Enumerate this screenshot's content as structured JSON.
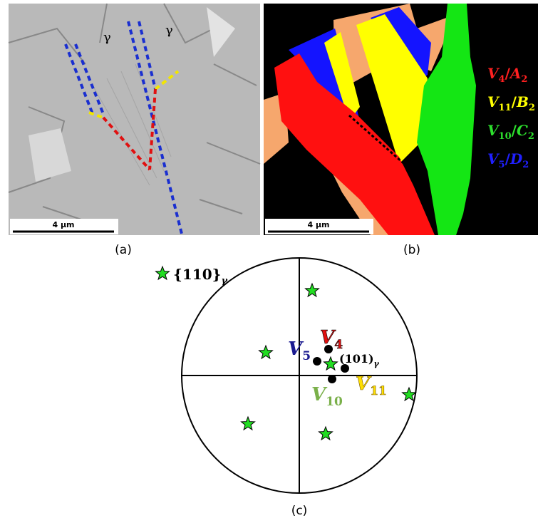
{
  "panel_a": {
    "labels": [
      "γ",
      "γ"
    ],
    "scale_bar": "4 µm",
    "caption": "(a)"
  },
  "panel_b": {
    "scale_bar": "4 µm",
    "caption": "(b)",
    "legend": [
      {
        "variant": "V",
        "variant_index": "4",
        "separator": "/",
        "group": "A",
        "group_index": "2"
      },
      {
        "variant": "V",
        "variant_index": "11",
        "separator": "/",
        "group": "B",
        "group_index": "2"
      },
      {
        "variant": "V",
        "variant_index": "10",
        "separator": "/",
        "group": "C",
        "group_index": "2"
      },
      {
        "variant": "V",
        "variant_index": "5",
        "separator": "/",
        "group": "D",
        "group_index": "2"
      }
    ]
  },
  "panel_c": {
    "caption": "(c)",
    "legend_label": {
      "text": "{110}",
      "subscript": "γ"
    },
    "pole_label": {
      "text": "(101)",
      "subscript": "γ"
    },
    "variants": [
      {
        "text": "V",
        "subscript": "4"
      },
      {
        "text": "V",
        "subscript": "5"
      },
      {
        "text": "V",
        "subscript": "10"
      },
      {
        "text": "V",
        "subscript": "11"
      }
    ]
  }
}
